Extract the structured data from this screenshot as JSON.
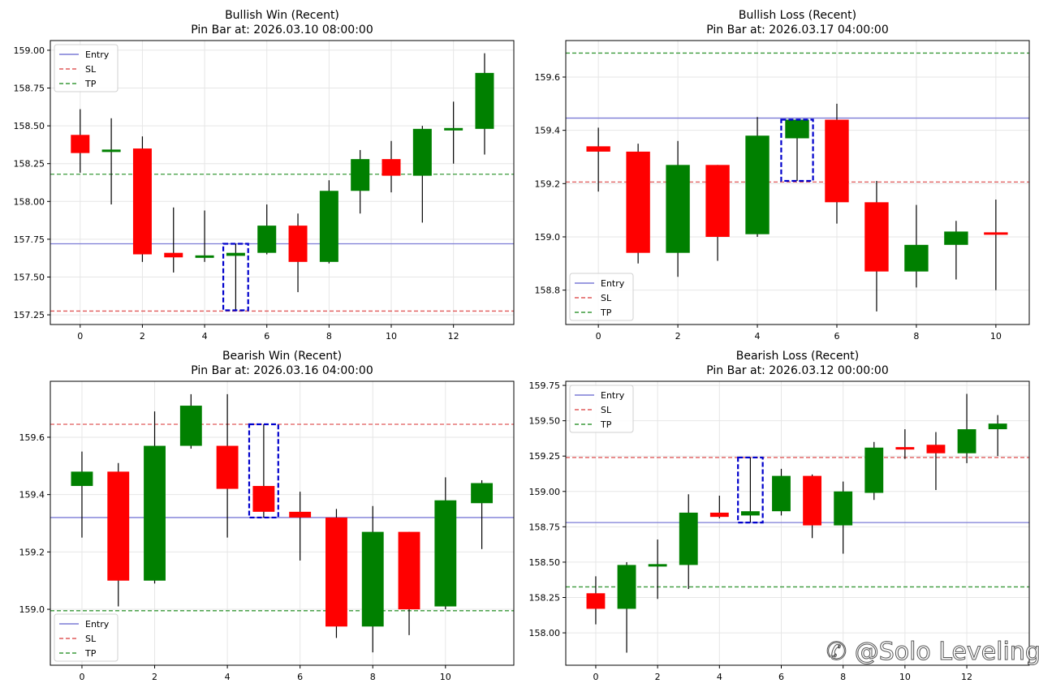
{
  "figure": {
    "watermark": "@Solo Leveling",
    "watermark_icon": "zhihu-logo-icon"
  },
  "colors": {
    "bull": "#008000",
    "bear": "#ff0000",
    "wick": "#000000",
    "entry": "#7b7bd6",
    "sl": "#e05a5a",
    "tp": "#3a9a3a",
    "highlight": "#0000cc",
    "grid": "#e6e6e6"
  },
  "legend": [
    "Entry",
    "SL",
    "TP"
  ],
  "chart_data": [
    {
      "type": "candlestick",
      "title": "Bullish Win (Recent)",
      "subtitle": "Pin Bar at: 2026.03.10 08:00:00",
      "legend_position": "upper left",
      "grid": true,
      "xticks": [
        0,
        2,
        4,
        6,
        8,
        10,
        12
      ],
      "yticks": [
        157.25,
        157.5,
        157.75,
        158.0,
        158.25,
        158.5,
        158.75,
        159.0
      ],
      "ytick_format": 2,
      "xlim": [
        -0.96,
        13.94
      ],
      "ylim": [
        157.186,
        159.064
      ],
      "levels": {
        "entry": 157.72,
        "sl": 157.275,
        "tp": 158.18
      },
      "pin_bar_index": 5,
      "candles": [
        {
          "x": 0,
          "open": 158.44,
          "high": 158.61,
          "low": 158.19,
          "close": 158.32
        },
        {
          "x": 1,
          "open": 158.33,
          "high": 158.55,
          "low": 157.98,
          "close": 158.34
        },
        {
          "x": 2,
          "open": 158.35,
          "high": 158.43,
          "low": 157.6,
          "close": 157.65
        },
        {
          "x": 3,
          "open": 157.66,
          "high": 157.96,
          "low": 157.53,
          "close": 157.63
        },
        {
          "x": 4,
          "open": 157.63,
          "high": 157.94,
          "low": 157.6,
          "close": 157.64
        },
        {
          "x": 5,
          "open": 157.64,
          "high": 157.72,
          "low": 157.28,
          "close": 157.66
        },
        {
          "x": 6,
          "open": 157.66,
          "high": 157.98,
          "low": 157.65,
          "close": 157.84
        },
        {
          "x": 7,
          "open": 157.84,
          "high": 157.92,
          "low": 157.4,
          "close": 157.6
        },
        {
          "x": 8,
          "open": 157.6,
          "high": 158.14,
          "low": 157.59,
          "close": 158.07
        },
        {
          "x": 9,
          "open": 158.07,
          "high": 158.34,
          "low": 157.92,
          "close": 158.28
        },
        {
          "x": 10,
          "open": 158.28,
          "high": 158.4,
          "low": 158.06,
          "close": 158.17
        },
        {
          "x": 11,
          "open": 158.17,
          "high": 158.5,
          "low": 157.86,
          "close": 158.48
        },
        {
          "x": 12,
          "open": 158.475,
          "high": 158.66,
          "low": 158.25,
          "close": 158.48
        },
        {
          "x": 13,
          "open": 158.48,
          "high": 158.98,
          "low": 158.31,
          "close": 158.85
        }
      ]
    },
    {
      "type": "candlestick",
      "title": "Bullish Loss (Recent)",
      "subtitle": "Pin Bar at: 2026.03.17 04:00:00",
      "legend_position": "lower left",
      "grid": true,
      "xticks": [
        0,
        2,
        4,
        6,
        8,
        10
      ],
      "yticks": [
        158.8,
        159.0,
        159.2,
        159.4,
        159.6
      ],
      "ytick_format": 1,
      "xlim": [
        -0.82,
        10.84
      ],
      "ylim": [
        158.671,
        159.737
      ],
      "levels": {
        "entry": 159.446,
        "sl": 159.206,
        "tp": 159.69
      },
      "pin_bar_index": 5,
      "candles": [
        {
          "x": 0,
          "open": 159.34,
          "high": 159.41,
          "low": 159.17,
          "close": 159.32
        },
        {
          "x": 1,
          "open": 159.32,
          "high": 159.35,
          "low": 158.9,
          "close": 158.94
        },
        {
          "x": 2,
          "open": 158.94,
          "high": 159.36,
          "low": 158.85,
          "close": 159.27
        },
        {
          "x": 3,
          "open": 159.27,
          "high": 159.27,
          "low": 158.91,
          "close": 159.0
        },
        {
          "x": 4,
          "open": 159.01,
          "high": 159.45,
          "low": 159.0,
          "close": 159.38
        },
        {
          "x": 5,
          "open": 159.37,
          "high": 159.44,
          "low": 159.21,
          "close": 159.44
        },
        {
          "x": 6,
          "open": 159.44,
          "high": 159.5,
          "low": 159.05,
          "close": 159.13
        },
        {
          "x": 7,
          "open": 159.13,
          "high": 159.21,
          "low": 158.72,
          "close": 158.87
        },
        {
          "x": 8,
          "open": 158.87,
          "high": 159.12,
          "low": 158.81,
          "close": 158.97
        },
        {
          "x": 9,
          "open": 158.97,
          "high": 159.06,
          "low": 158.84,
          "close": 159.02
        },
        {
          "x": 10,
          "open": 159.015,
          "high": 159.14,
          "low": 158.8,
          "close": 159.01
        }
      ]
    },
    {
      "type": "candlestick",
      "title": "Bearish Win (Recent)",
      "subtitle": "Pin Bar at: 2026.03.16 04:00:00",
      "legend_position": "lower left",
      "grid": true,
      "xticks": [
        0,
        2,
        4,
        6,
        8,
        10
      ],
      "yticks": [
        159.0,
        159.2,
        159.4,
        159.6
      ],
      "ytick_format": 1,
      "xlim": [
        -0.87,
        11.88
      ],
      "ylim": [
        158.805,
        159.795
      ],
      "levels": {
        "entry": 159.32,
        "sl": 159.645,
        "tp": 158.995
      },
      "pin_bar_index": 5,
      "candles": [
        {
          "x": 0,
          "open": 159.43,
          "high": 159.55,
          "low": 159.25,
          "close": 159.48
        },
        {
          "x": 1,
          "open": 159.48,
          "high": 159.51,
          "low": 159.01,
          "close": 159.1
        },
        {
          "x": 2,
          "open": 159.1,
          "high": 159.69,
          "low": 159.09,
          "close": 159.57
        },
        {
          "x": 3,
          "open": 159.57,
          "high": 159.75,
          "low": 159.56,
          "close": 159.71
        },
        {
          "x": 4,
          "open": 159.57,
          "high": 159.75,
          "low": 159.25,
          "close": 159.42
        },
        {
          "x": 5,
          "open": 159.43,
          "high": 159.645,
          "low": 159.32,
          "close": 159.34
        },
        {
          "x": 6,
          "open": 159.34,
          "high": 159.41,
          "low": 159.17,
          "close": 159.32
        },
        {
          "x": 7,
          "open": 159.32,
          "high": 159.35,
          "low": 158.9,
          "close": 158.94
        },
        {
          "x": 8,
          "open": 158.94,
          "high": 159.36,
          "low": 158.85,
          "close": 159.27
        },
        {
          "x": 9,
          "open": 159.27,
          "high": 159.27,
          "low": 158.91,
          "close": 159.0
        },
        {
          "x": 10,
          "open": 159.01,
          "high": 159.46,
          "low": 159.0,
          "close": 159.38
        },
        {
          "x": 11,
          "open": 159.37,
          "high": 159.45,
          "low": 159.21,
          "close": 159.44
        }
      ]
    },
    {
      "type": "candlestick",
      "title": "Bearish Loss (Recent)",
      "subtitle": "Pin Bar at: 2026.03.12 00:00:00",
      "legend_position": "upper left",
      "grid": true,
      "xticks": [
        0,
        2,
        4,
        6,
        8,
        10,
        12
      ],
      "yticks": [
        158.0,
        158.25,
        158.5,
        158.75,
        159.0,
        159.25,
        159.5,
        159.75
      ],
      "ytick_format": 2,
      "xlim": [
        -0.97,
        14.02
      ],
      "ylim": [
        157.771,
        159.779
      ],
      "levels": {
        "entry": 158.78,
        "sl": 159.24,
        "tp": 158.325
      },
      "pin_bar_index": 5,
      "candles": [
        {
          "x": 0,
          "open": 158.28,
          "high": 158.4,
          "low": 158.06,
          "close": 158.17
        },
        {
          "x": 1,
          "open": 158.17,
          "high": 158.5,
          "low": 157.86,
          "close": 158.48
        },
        {
          "x": 2,
          "open": 158.475,
          "high": 158.66,
          "low": 158.24,
          "close": 158.48
        },
        {
          "x": 3,
          "open": 158.48,
          "high": 158.98,
          "low": 158.31,
          "close": 158.85
        },
        {
          "x": 4,
          "open": 158.85,
          "high": 158.97,
          "low": 158.81,
          "close": 158.82
        },
        {
          "x": 5,
          "open": 158.83,
          "high": 159.24,
          "low": 158.78,
          "close": 158.86
        },
        {
          "x": 6,
          "open": 158.86,
          "high": 159.16,
          "low": 158.83,
          "close": 159.11
        },
        {
          "x": 7,
          "open": 159.11,
          "high": 159.12,
          "low": 158.67,
          "close": 158.76
        },
        {
          "x": 8,
          "open": 158.76,
          "high": 159.07,
          "low": 158.56,
          "close": 159.0
        },
        {
          "x": 9,
          "open": 158.99,
          "high": 159.35,
          "low": 158.94,
          "close": 159.31
        },
        {
          "x": 10,
          "open": 159.31,
          "high": 159.44,
          "low": 159.23,
          "close": 159.3
        },
        {
          "x": 11,
          "open": 159.33,
          "high": 159.42,
          "low": 159.01,
          "close": 159.27
        },
        {
          "x": 12,
          "open": 159.27,
          "high": 159.69,
          "low": 159.2,
          "close": 159.44
        },
        {
          "x": 13,
          "open": 159.44,
          "high": 159.54,
          "low": 159.25,
          "close": 159.48
        }
      ]
    }
  ]
}
